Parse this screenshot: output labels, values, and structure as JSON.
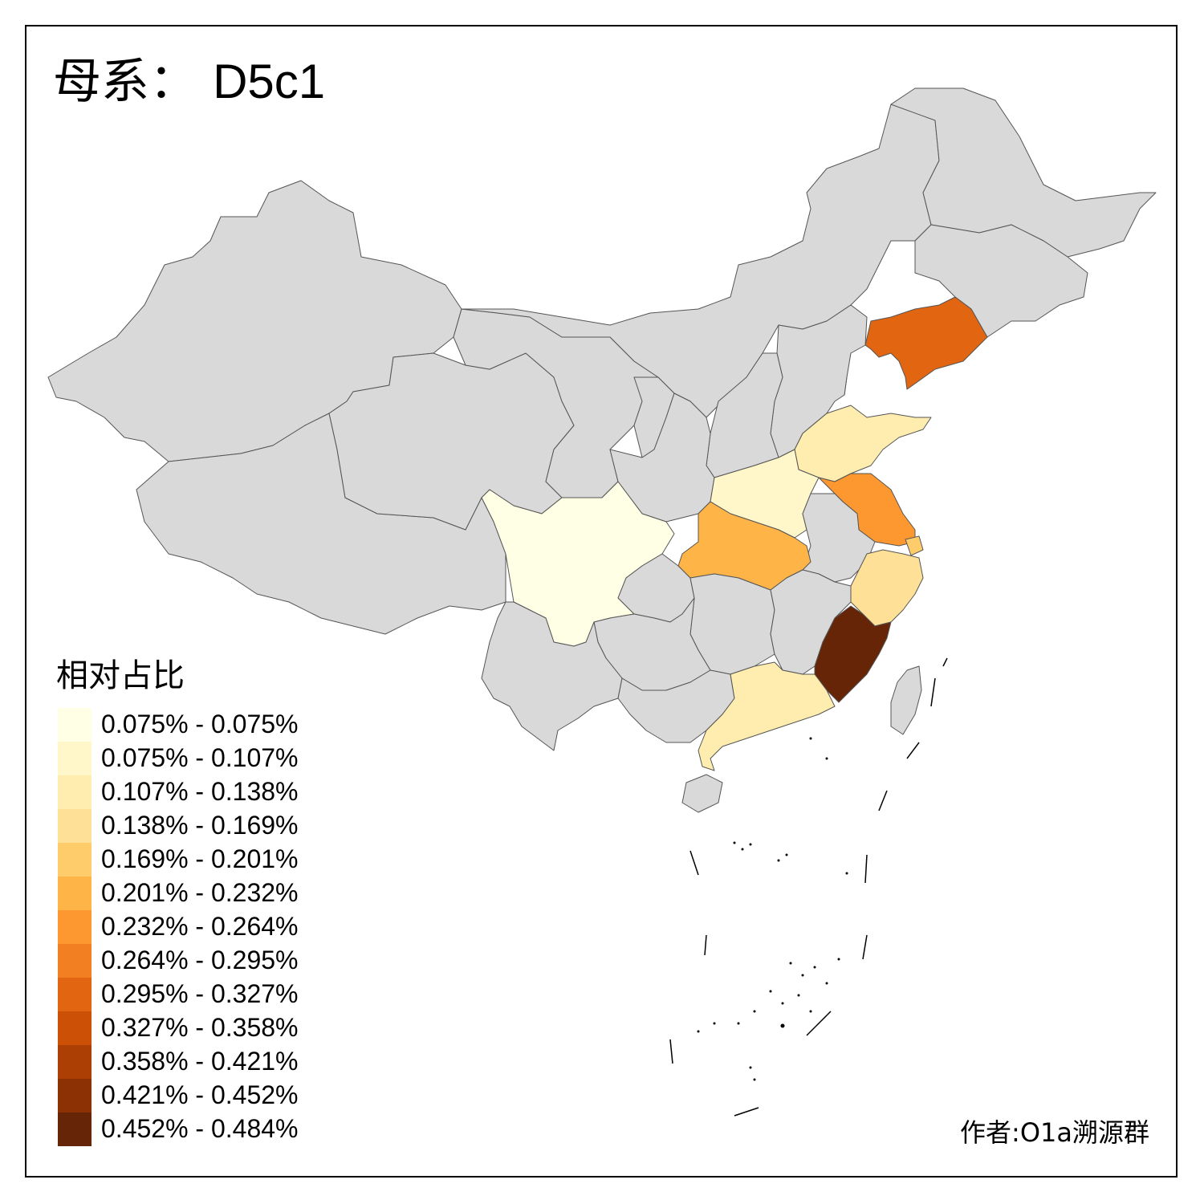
{
  "title": {
    "prefix": "母系：",
    "haplogroup": "D5c1"
  },
  "legend": {
    "title": "相对占比",
    "items": [
      {
        "label": "0.075% - 0.075%",
        "color": "#FFFFE5"
      },
      {
        "label": "0.075% - 0.107%",
        "color": "#FFF7C9"
      },
      {
        "label": "0.107% - 0.138%",
        "color": "#FEEDAE"
      },
      {
        "label": "0.138% - 0.169%",
        "color": "#FEE196"
      },
      {
        "label": "0.169% - 0.201%",
        "color": "#FECC6A"
      },
      {
        "label": "0.201% - 0.232%",
        "color": "#FEB447"
      },
      {
        "label": "0.232% - 0.264%",
        "color": "#FC982F"
      },
      {
        "label": "0.264% - 0.295%",
        "color": "#F27F22"
      },
      {
        "label": "0.295% - 0.327%",
        "color": "#E26612"
      },
      {
        "label": "0.327% - 0.358%",
        "color": "#CC5006"
      },
      {
        "label": "0.358% - 0.421%",
        "color": "#AC3F04"
      },
      {
        "label": "0.421% - 0.452%",
        "color": "#8B3104"
      },
      {
        "label": "0.452% - 0.484%",
        "color": "#662506"
      }
    ]
  },
  "map": {
    "no_data_color": "#D9D9D9",
    "border_color": "#555555",
    "regions": [
      {
        "name": "xinjiang",
        "color": "#D9D9D9"
      },
      {
        "name": "tibet",
        "color": "#D9D9D9"
      },
      {
        "name": "qinghai",
        "color": "#D9D9D9"
      },
      {
        "name": "gansu",
        "color": "#D9D9D9"
      },
      {
        "name": "inner-mongolia",
        "color": "#D9D9D9"
      },
      {
        "name": "heilongjiang",
        "color": "#D9D9D9"
      },
      {
        "name": "jilin",
        "color": "#D9D9D9"
      },
      {
        "name": "liaoning",
        "color": "#E26612"
      },
      {
        "name": "beijing",
        "color": "#D9D9D9"
      },
      {
        "name": "tianjin",
        "color": "#F27F22"
      },
      {
        "name": "hebei",
        "color": "#D9D9D9"
      },
      {
        "name": "shanxi",
        "color": "#D9D9D9"
      },
      {
        "name": "shaanxi",
        "color": "#D9D9D9"
      },
      {
        "name": "ningxia",
        "color": "#D9D9D9"
      },
      {
        "name": "shandong",
        "color": "#FEEDAE"
      },
      {
        "name": "henan",
        "color": "#FFF7C9"
      },
      {
        "name": "jiangsu",
        "color": "#FC982F"
      },
      {
        "name": "shanghai",
        "color": "#FECC6A"
      },
      {
        "name": "anhui",
        "color": "#D9D9D9"
      },
      {
        "name": "zhejiang",
        "color": "#FEE196"
      },
      {
        "name": "hubei",
        "color": "#FEB447"
      },
      {
        "name": "sichuan",
        "color": "#FFFFE5"
      },
      {
        "name": "chongqing",
        "color": "#D9D9D9"
      },
      {
        "name": "hunan",
        "color": "#D9D9D9"
      },
      {
        "name": "jiangxi",
        "color": "#D9D9D9"
      },
      {
        "name": "fujian",
        "color": "#662506"
      },
      {
        "name": "guizhou",
        "color": "#D9D9D9"
      },
      {
        "name": "yunnan",
        "color": "#D9D9D9"
      },
      {
        "name": "guangxi",
        "color": "#D9D9D9"
      },
      {
        "name": "guangdong",
        "color": "#FEEDAE"
      },
      {
        "name": "hainan",
        "color": "#D9D9D9"
      },
      {
        "name": "taiwan",
        "color": "#D9D9D9"
      }
    ]
  },
  "credit": "作者:O1a溯源群"
}
